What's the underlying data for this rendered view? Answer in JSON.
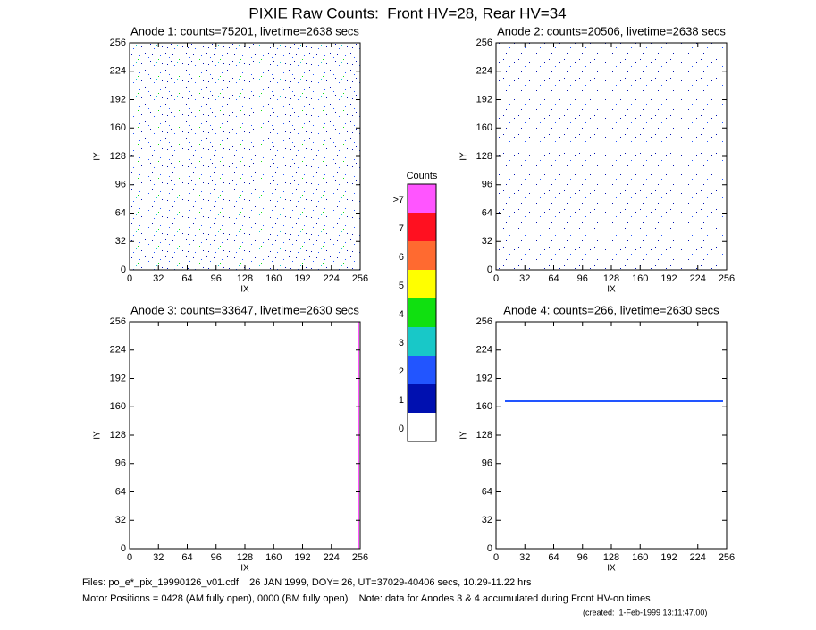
{
  "title": "PIXIE Raw Counts:  Front HV=28, Rear HV=34",
  "panels": [
    {
      "title": "Anode 1: counts=75201, livetime=2638 secs",
      "xlabel": "IX",
      "ylabel": "IY",
      "xlim": [
        0,
        256
      ],
      "ylim": [
        0,
        256
      ],
      "xticks": [
        0,
        32,
        64,
        96,
        128,
        160,
        192,
        224,
        256
      ],
      "yticks": [
        0,
        32,
        64,
        96,
        128,
        160,
        192,
        224,
        256
      ]
    },
    {
      "title": "Anode 2: counts=20506, livetime=2638 secs",
      "xlabel": "IX",
      "ylabel": "IY",
      "xlim": [
        0,
        256
      ],
      "ylim": [
        0,
        256
      ],
      "xticks": [
        0,
        32,
        64,
        96,
        128,
        160,
        192,
        224,
        256
      ],
      "yticks": [
        0,
        32,
        64,
        96,
        128,
        160,
        192,
        224,
        256
      ]
    },
    {
      "title": "Anode 3: counts=33647, livetime=2630 secs",
      "xlabel": "IX",
      "ylabel": "IY",
      "xlim": [
        0,
        256
      ],
      "ylim": [
        0,
        256
      ],
      "xticks": [
        0,
        32,
        64,
        96,
        128,
        160,
        192,
        224,
        256
      ],
      "yticks": [
        0,
        32,
        64,
        96,
        128,
        160,
        192,
        224,
        256
      ]
    },
    {
      "title": "Anode 4: counts=266, livetime=2630 secs",
      "xlabel": "IX",
      "ylabel": "IY",
      "xlim": [
        0,
        256
      ],
      "ylim": [
        0,
        256
      ],
      "xticks": [
        0,
        32,
        64,
        96,
        128,
        160,
        192,
        224,
        256
      ],
      "yticks": [
        0,
        32,
        64,
        96,
        128,
        160,
        192,
        224,
        256
      ]
    }
  ],
  "colorbar": {
    "title": "Counts",
    "levels": [
      {
        "label": "0",
        "color": "#ffffff"
      },
      {
        "label": "1",
        "color": "#0010b0"
      },
      {
        "label": "2",
        "color": "#2255ff"
      },
      {
        "label": "3",
        "color": "#18c8c8"
      },
      {
        "label": "4",
        "color": "#10e010"
      },
      {
        "label": "5",
        "color": "#ffff00"
      },
      {
        "label": "6",
        "color": "#ff6a30"
      },
      {
        "label": "7",
        "color": "#ff1020"
      },
      {
        "label": ">7",
        "color": "#ff55ff"
      }
    ]
  },
  "footer": {
    "files": "Files: po_e*_pix_19990126_v01.cdf    26 JAN 1999, DOY= 26, UT=37029-40406 secs, 10.29-11.22 hrs",
    "motor": "Motor Positions = 0428 (AM fully open), 0000 (BM fully open)    Note: data for Anodes 3 & 4 accumulated during Front HV-on times",
    "created": "(created:  1-Feb-1999 13:11:47.00)"
  }
}
